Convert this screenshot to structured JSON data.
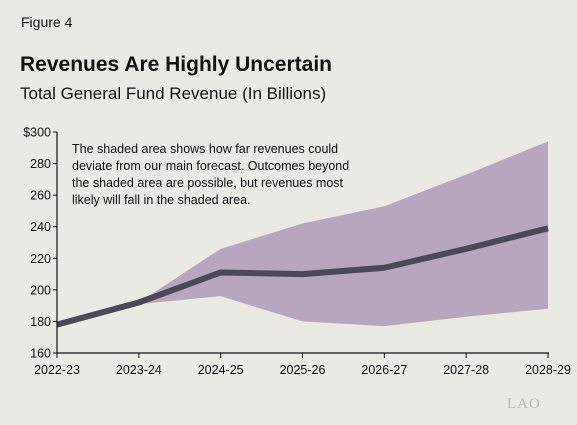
{
  "figure_label": "Figure 4",
  "logo": "LAO",
  "colors": {
    "band": "#b7a6be",
    "line": "#4d4857",
    "axis": "#111111",
    "background": "#ebe9e4"
  },
  "chart_data": {
    "type": "area",
    "title": "Revenues Are Highly Uncertain",
    "subtitle": "Total General Fund Revenue (In Billions)",
    "annotation": "The shaded area shows how far revenues could deviate from our main forecast. Outcomes beyond the shaded area are possible, but revenues most likely will fall in the shaded area.",
    "categories": [
      "2022-23",
      "2023-24",
      "2024-25",
      "2025-26",
      "2026-27",
      "2027-28",
      "2028-29"
    ],
    "ylim": [
      160,
      300
    ],
    "yticks": [
      160,
      180,
      200,
      220,
      240,
      260,
      280,
      300
    ],
    "ytick_labels": [
      "160",
      "180",
      "200",
      "220",
      "240",
      "260",
      "280",
      "$300"
    ],
    "series": [
      {
        "role": "main-forecast",
        "values": [
          178,
          192,
          211,
          210,
          214,
          226,
          239
        ]
      },
      {
        "role": "band-upper",
        "values": [
          178,
          192,
          226,
          242,
          253,
          273,
          294
        ]
      },
      {
        "role": "band-lower",
        "values": [
          178,
          191,
          196,
          180,
          177,
          183,
          188
        ]
      }
    ],
    "grid": false,
    "legend": "none"
  }
}
